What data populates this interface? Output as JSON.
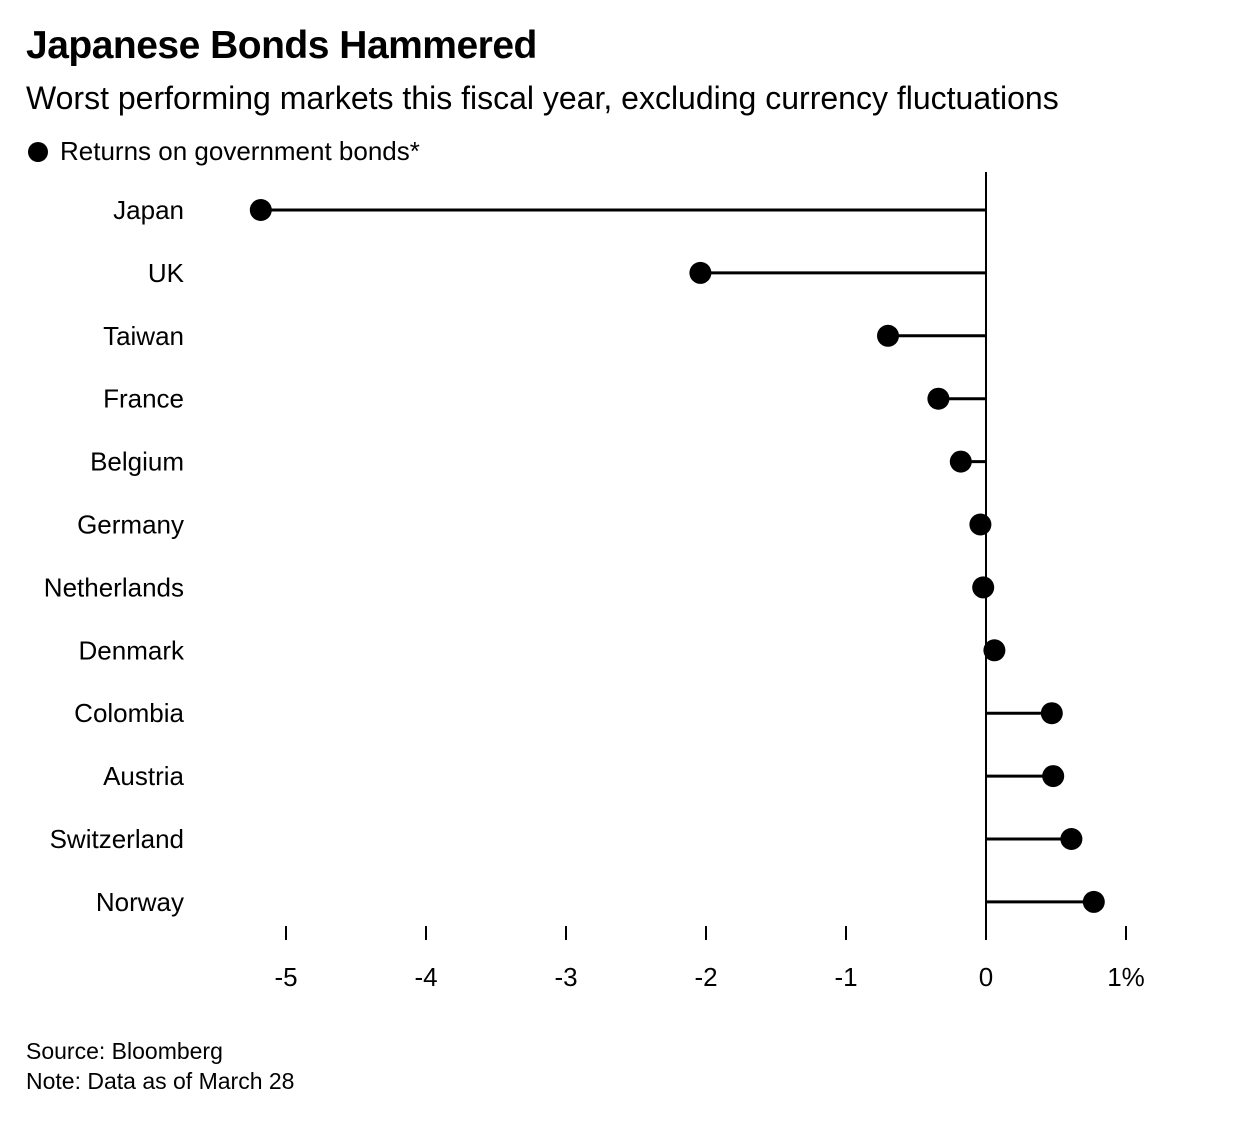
{
  "title": "Japanese Bonds Hammered",
  "subtitle": "Worst performing markets this fiscal year, excluding currency fluctuations",
  "legend_label": "Returns on government bonds*",
  "source": "Source: Bloomberg",
  "note": "Note: Data as of March 28",
  "colors": {
    "marker": "#000000",
    "axis": "#000000",
    "background": "#ffffff"
  },
  "chart_data": {
    "type": "lollipop",
    "categories": [
      "Japan",
      "UK",
      "Taiwan",
      "France",
      "Belgium",
      "Germany",
      "Netherlands",
      "Denmark",
      "Colombia",
      "Austria",
      "Switzerland",
      "Norway"
    ],
    "series": [
      {
        "name": "Returns on government bonds*",
        "values": [
          -5.18,
          -2.04,
          -0.7,
          -0.34,
          -0.18,
          -0.04,
          -0.02,
          0.06,
          0.47,
          0.48,
          0.61,
          0.77
        ]
      }
    ],
    "xlim": [
      -5,
      1
    ],
    "xticks": [
      -5,
      -4,
      -3,
      -2,
      -1,
      0,
      1
    ],
    "xtick_labels": [
      "-5",
      "-4",
      "-3",
      "-2",
      "-1",
      "0",
      "1%"
    ],
    "grid": false,
    "legend": "top-left"
  }
}
